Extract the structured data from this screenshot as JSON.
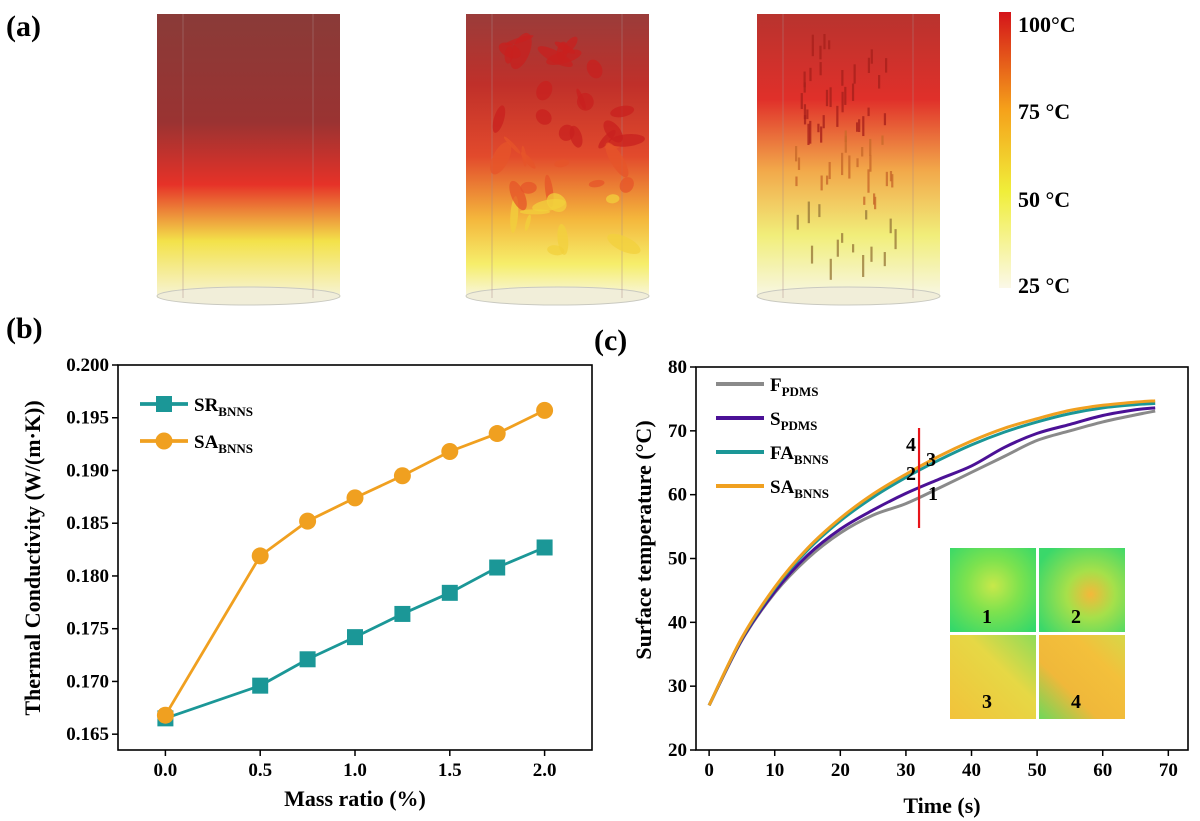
{
  "panel_a": {
    "label": "(a)",
    "colorbar_ticks": [
      "100°C",
      "75  °C",
      "50  °C",
      "25  °C"
    ],
    "colors": {
      "hot": "#d4141a",
      "warm": "#f5a01a",
      "mid": "#f0ee3a",
      "cold": "#fbf8e8"
    }
  },
  "panel_b": {
    "label": "(b)"
  },
  "panel_c": {
    "label": "(c)",
    "marker_numbers": [
      "4",
      "3",
      "2",
      "1"
    ],
    "inset_labels": [
      "1",
      "2",
      "3",
      "4"
    ],
    "colors": {
      "marker_line": "#e8141a",
      "inset_green": "#3fe06a",
      "inset_yellow": "#f2c23a"
    }
  },
  "chart_data": [
    {
      "type": "line",
      "panel": "b",
      "xlabel": "Mass ratio (%)",
      "ylabel": "Thermal Conductivity (W/(m·K))",
      "xlim": [
        -0.25,
        2.25
      ],
      "ylim": [
        0.1635,
        0.2
      ],
      "xticks": [
        0.0,
        0.5,
        1.0,
        1.5,
        2.0
      ],
      "yticks": [
        0.165,
        0.17,
        0.175,
        0.18,
        0.185,
        0.19,
        0.195,
        0.2
      ],
      "x": [
        0,
        0.5,
        0.75,
        1.0,
        1.25,
        1.5,
        1.75,
        2.0
      ],
      "legend_position": "top-left",
      "series": [
        {
          "name": "SR",
          "sub": "BNNS",
          "marker": "square",
          "color": "#1b9797",
          "values": [
            0.1665,
            0.1696,
            0.1721,
            0.1742,
            0.1764,
            0.1784,
            0.1808,
            0.1827
          ]
        },
        {
          "name": "SA",
          "sub": "BNNS",
          "marker": "circle",
          "color": "#f0a020",
          "values": [
            0.1668,
            0.1819,
            0.1852,
            0.1874,
            0.1895,
            0.1918,
            0.1935,
            0.1957
          ]
        }
      ]
    },
    {
      "type": "line",
      "panel": "c",
      "xlabel": "Time (s)",
      "ylabel": "Surface temperature (°C)",
      "xlim": [
        -2,
        73
      ],
      "ylim": [
        20,
        80
      ],
      "xticks": [
        0,
        10,
        20,
        30,
        40,
        50,
        60,
        70
      ],
      "yticks": [
        20,
        30,
        40,
        50,
        60,
        70,
        80
      ],
      "x": [
        0,
        5,
        10,
        15,
        20,
        25,
        30,
        35,
        40,
        45,
        50,
        55,
        60,
        65,
        68
      ],
      "legend_position": "top-left",
      "marker_time": 32,
      "series": [
        {
          "name": "F",
          "sub": "PDMS",
          "color": "#8a8a8a",
          "values": [
            27,
            37.2,
            44.6,
            50,
            54,
            56.8,
            58.6,
            61,
            63.5,
            66,
            68.5,
            70,
            71.4,
            72.5,
            73.1
          ]
        },
        {
          "name": "S",
          "sub": "PDMS",
          "color": "#4b1196",
          "values": [
            27,
            37.3,
            44.8,
            50.5,
            54.6,
            57.6,
            60.2,
            62.4,
            64.5,
            67.4,
            69.6,
            71,
            72.4,
            73.3,
            73.6
          ]
        },
        {
          "name": "FA",
          "sub": "BNNS",
          "color": "#1b9797",
          "values": [
            27,
            37.5,
            45.3,
            51.3,
            55.9,
            59.6,
            62.7,
            65.4,
            67.8,
            69.8,
            71.4,
            72.7,
            73.6,
            74.1,
            74.3
          ]
        },
        {
          "name": "SA",
          "sub": "BNNS",
          "color": "#f0a020",
          "values": [
            27,
            37.6,
            45.5,
            51.6,
            56.3,
            60.1,
            63.2,
            66,
            68.4,
            70.4,
            71.9,
            73.2,
            74,
            74.5,
            74.7
          ]
        }
      ]
    }
  ]
}
